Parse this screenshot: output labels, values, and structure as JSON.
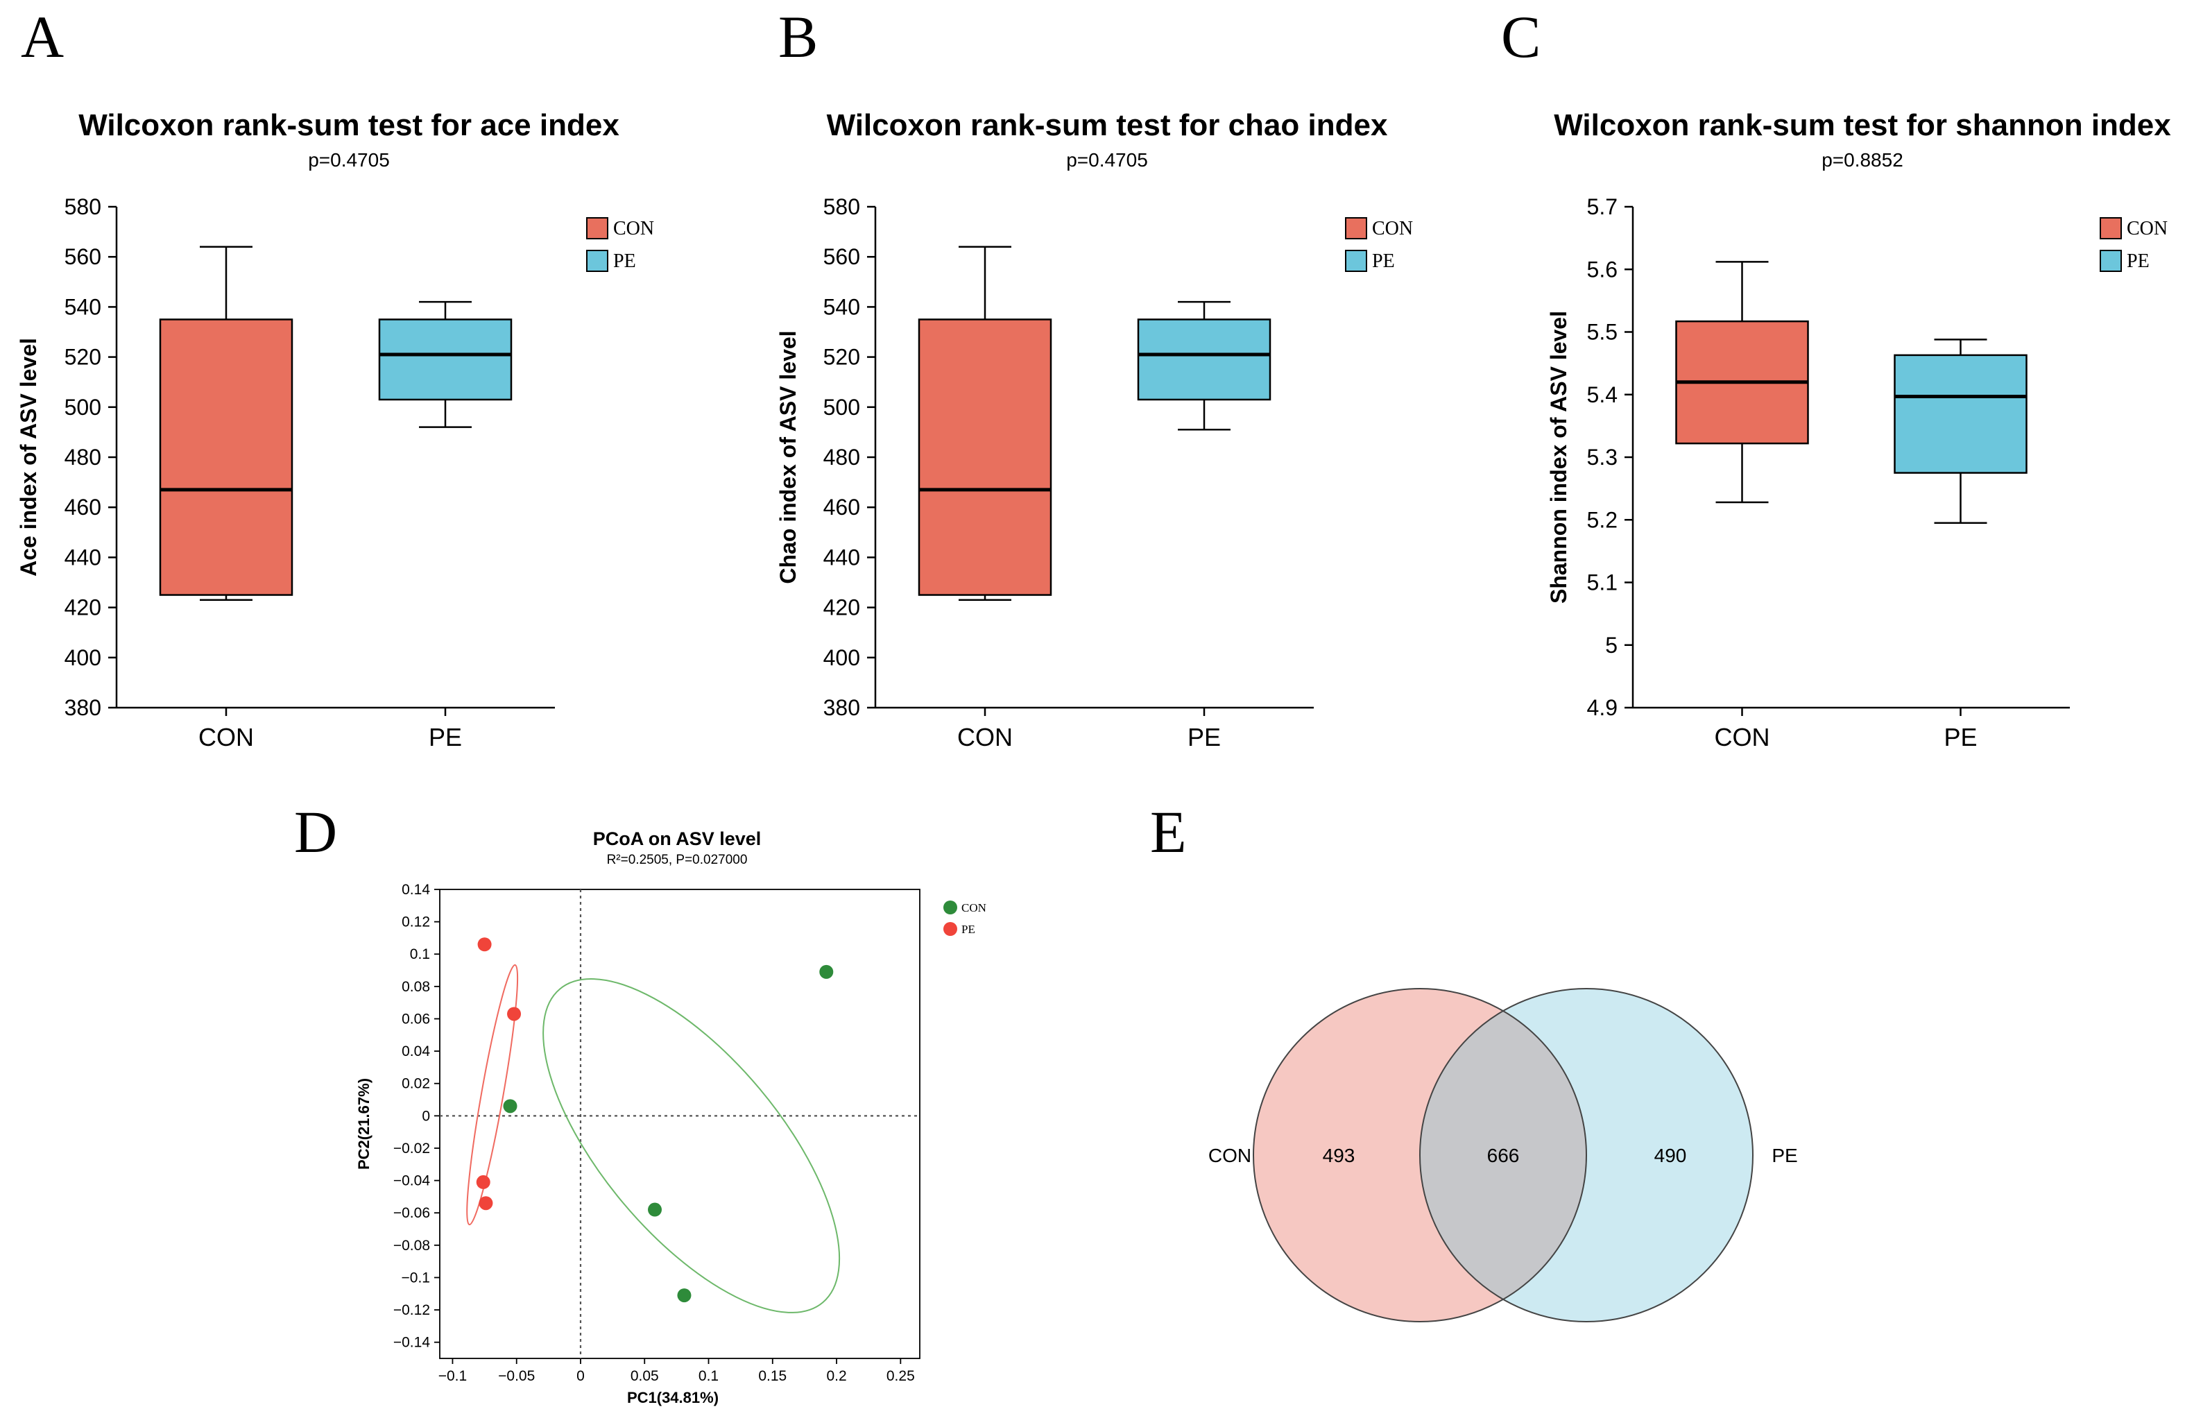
{
  "panels": {
    "A": "A",
    "B": "B",
    "C": "C",
    "D": "D",
    "E": "E"
  },
  "colors": {
    "CON": "#E8705E",
    "PE": "#6CC6DC",
    "pcoa_CON": "#2E8B3A",
    "pcoa_PE": "#F0443A",
    "pcoa_ellipse_CON": "#6DB86A",
    "pcoa_ellipse_PE": "#F06A60",
    "venn_CON": "#F6C8C2",
    "venn_PE": "#CDEAF2",
    "venn_overlap": "#C6C7CA"
  },
  "chart_data": [
    {
      "type": "box",
      "panel": "A",
      "title": "Wilcoxon rank-sum test for ace index",
      "subtitle": "p=0.4705",
      "xlabel": "",
      "ylabel": "Ace index of ASV level",
      "ylim": [
        380,
        580
      ],
      "yticks": [
        380,
        400,
        420,
        440,
        460,
        480,
        500,
        520,
        540,
        560,
        580
      ],
      "ytick_labels": [
        "380",
        "400",
        "420",
        "440",
        "460",
        "480",
        "500",
        "520",
        "540",
        "560",
        "580"
      ],
      "categories": [
        "CON",
        "PE"
      ],
      "legend": [
        "CON",
        "PE"
      ],
      "boxes": [
        {
          "name": "CON",
          "min": 423,
          "q1": 425,
          "median": 467,
          "q3": 535,
          "max": 564
        },
        {
          "name": "PE",
          "min": 492,
          "q1": 503,
          "median": 521,
          "q3": 535,
          "max": 542
        }
      ]
    },
    {
      "type": "box",
      "panel": "B",
      "title": "Wilcoxon rank-sum test for chao index",
      "subtitle": "p=0.4705",
      "xlabel": "",
      "ylabel": "Chao index of ASV level",
      "ylim": [
        380,
        580
      ],
      "yticks": [
        380,
        400,
        420,
        440,
        460,
        480,
        500,
        520,
        540,
        560,
        580
      ],
      "ytick_labels": [
        "380",
        "400",
        "420",
        "440",
        "460",
        "480",
        "500",
        "520",
        "540",
        "560",
        "580"
      ],
      "categories": [
        "CON",
        "PE"
      ],
      "legend": [
        "CON",
        "PE"
      ],
      "boxes": [
        {
          "name": "CON",
          "min": 423,
          "q1": 425,
          "median": 467,
          "q3": 535,
          "max": 564
        },
        {
          "name": "PE",
          "min": 491,
          "q1": 503,
          "median": 521,
          "q3": 535,
          "max": 542
        }
      ]
    },
    {
      "type": "box",
      "panel": "C",
      "title": "Wilcoxon rank-sum test for shannon index",
      "subtitle": "p=0.8852",
      "xlabel": "",
      "ylabel": "Shannon index of ASV level",
      "ylim": [
        4.9,
        5.7
      ],
      "yticks": [
        4.9,
        5.0,
        5.1,
        5.2,
        5.3,
        5.4,
        5.5,
        5.6,
        5.7
      ],
      "ytick_labels": [
        "4.9",
        "5",
        "5.1",
        "5.2",
        "5.3",
        "5.4",
        "5.5",
        "5.6",
        "5.7"
      ],
      "categories": [
        "CON",
        "PE"
      ],
      "legend": [
        "CON",
        "PE"
      ],
      "boxes": [
        {
          "name": "CON",
          "min": 5.228,
          "q1": 5.322,
          "median": 5.42,
          "q3": 5.517,
          "max": 5.612
        },
        {
          "name": "PE",
          "min": 5.195,
          "q1": 5.275,
          "median": 5.397,
          "q3": 5.463,
          "max": 5.488
        }
      ]
    },
    {
      "type": "scatter",
      "panel": "D",
      "title": "PCoA on ASV level",
      "subtitle": "R²=0.2505, P=0.027000",
      "xlabel": "PC1(34.81%)",
      "ylabel": "PC2(21.67%)",
      "xlim": [
        -0.11,
        0.265
      ],
      "ylim": [
        -0.15,
        0.14
      ],
      "xticks": [
        -0.1,
        -0.05,
        0,
        0.05,
        0.1,
        0.15,
        0.2,
        0.25
      ],
      "xtick_labels": [
        "−0.1",
        "−0.05",
        "0",
        "0.05",
        "0.1",
        "0.15",
        "0.2",
        "0.25"
      ],
      "yticks": [
        -0.14,
        -0.12,
        -0.1,
        -0.08,
        -0.06,
        -0.04,
        -0.02,
        0,
        0.02,
        0.04,
        0.06,
        0.08,
        0.1,
        0.12,
        0.14
      ],
      "ytick_labels": [
        "−0.14",
        "−0.12",
        "−0.1",
        "−0.08",
        "−0.06",
        "−0.04",
        "−0.02",
        "0",
        "0.02",
        "0.04",
        "0.06",
        "0.08",
        "0.1",
        "0.12",
        "0.14"
      ],
      "legend": [
        "CON",
        "PE"
      ],
      "series": [
        {
          "name": "CON",
          "points": [
            [
              0.192,
              0.089
            ],
            [
              -0.055,
              0.006
            ],
            [
              0.058,
              -0.058
            ],
            [
              0.081,
              -0.111
            ]
          ]
        },
        {
          "name": "PE",
          "points": [
            [
              -0.075,
              0.106
            ],
            [
              -0.052,
              0.063
            ],
            [
              -0.076,
              -0.041
            ],
            [
              -0.074,
              -0.054
            ]
          ]
        }
      ],
      "ellipses": [
        {
          "name": "CON",
          "cx": 0.0865,
          "cy": -0.0185,
          "rx": 0.0695,
          "ry": 0.1265,
          "angle_deg": -40
        },
        {
          "name": "PE",
          "cx": -0.069,
          "cy": 0.013,
          "rx": 0.0085,
          "ry": 0.0815,
          "angle_deg": 10
        }
      ]
    },
    {
      "type": "venn",
      "panel": "E",
      "sets": [
        {
          "name": "CON",
          "unique": 493
        },
        {
          "name": "PE",
          "unique": 490
        }
      ],
      "overlap": 666
    }
  ]
}
